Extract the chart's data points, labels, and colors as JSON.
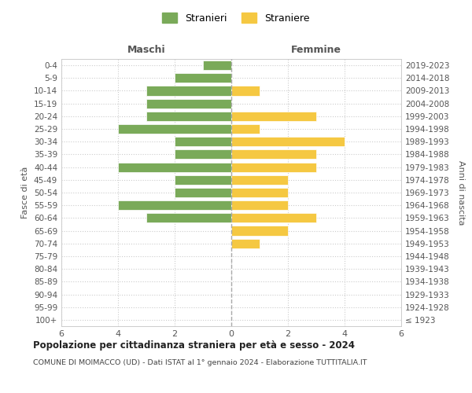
{
  "age_groups": [
    "100+",
    "95-99",
    "90-94",
    "85-89",
    "80-84",
    "75-79",
    "70-74",
    "65-69",
    "60-64",
    "55-59",
    "50-54",
    "45-49",
    "40-44",
    "35-39",
    "30-34",
    "25-29",
    "20-24",
    "15-19",
    "10-14",
    "5-9",
    "0-4"
  ],
  "birth_years": [
    "≤ 1923",
    "1924-1928",
    "1929-1933",
    "1934-1938",
    "1939-1943",
    "1944-1948",
    "1949-1953",
    "1954-1958",
    "1959-1963",
    "1964-1968",
    "1969-1973",
    "1974-1978",
    "1979-1983",
    "1984-1988",
    "1989-1993",
    "1994-1998",
    "1999-2003",
    "2004-2008",
    "2009-2013",
    "2014-2018",
    "2019-2023"
  ],
  "maschi": [
    0,
    0,
    0,
    0,
    0,
    0,
    0,
    0,
    3,
    4,
    2,
    2,
    4,
    2,
    2,
    4,
    3,
    3,
    3,
    2,
    1
  ],
  "femmine": [
    0,
    0,
    0,
    0,
    0,
    0,
    1,
    2,
    3,
    2,
    2,
    2,
    3,
    3,
    4,
    1,
    3,
    0,
    1,
    0,
    0
  ],
  "maschi_color": "#7aaa59",
  "femmine_color": "#f5c842",
  "title": "Popolazione per cittadinanza straniera per età e sesso - 2024",
  "subtitle": "COMUNE DI MOIMACCO (UD) - Dati ISTAT al 1° gennaio 2024 - Elaborazione TUTTITALIA.IT",
  "legend_maschi": "Stranieri",
  "legend_femmine": "Straniere",
  "xlabel_maschi": "Maschi",
  "xlabel_femmine": "Femmine",
  "ylabel": "Fasce di età",
  "ylabel_right": "Anni di nascita",
  "xlim": 6,
  "background_color": "#ffffff",
  "grid_color": "#cccccc"
}
